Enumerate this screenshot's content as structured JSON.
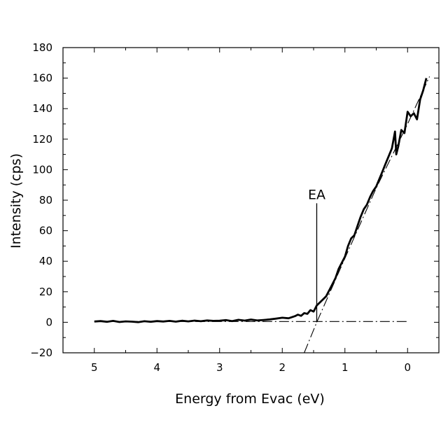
{
  "chart_data": {
    "type": "line",
    "title": "",
    "xlabel": "Energy from Evac (eV)",
    "ylabel": "Intensity (cps)",
    "x_reversed": true,
    "xlim": [
      5.5,
      -0.5
    ],
    "ylim": [
      -20,
      180
    ],
    "xticks": [
      5,
      4,
      3,
      2,
      1,
      0
    ],
    "yticks": [
      -20,
      0,
      20,
      40,
      60,
      80,
      100,
      120,
      140,
      160,
      180
    ],
    "grid": false,
    "legend": "none",
    "annotations": [
      {
        "text": "EA",
        "x": 1.45,
        "y": 0
      }
    ],
    "series": [
      {
        "style": "solid-thick",
        "x": [
          5.0,
          4.9,
          4.8,
          4.7,
          4.6,
          4.5,
          4.4,
          4.3,
          4.2,
          4.1,
          4.0,
          3.9,
          3.8,
          3.7,
          3.6,
          3.5,
          3.4,
          3.3,
          3.2,
          3.1,
          3.0,
          2.9,
          2.8,
          2.7,
          2.6,
          2.5,
          2.4,
          2.3,
          2.2,
          2.1,
          2.0,
          1.9,
          1.8,
          1.75,
          1.7,
          1.65,
          1.6,
          1.55,
          1.5,
          1.45,
          1.4,
          1.35,
          1.3,
          1.25,
          1.2,
          1.15,
          1.1,
          1.05,
          1.0,
          0.95,
          0.9,
          0.85,
          0.8,
          0.75,
          0.7,
          0.65,
          0.6,
          0.55,
          0.5,
          0.45,
          0.4,
          0.35,
          0.3,
          0.25,
          0.2,
          0.18,
          0.15,
          0.1,
          0.05,
          0.0,
          -0.05,
          -0.1,
          -0.15,
          -0.2,
          -0.25,
          -0.3
        ],
        "y": [
          0.5,
          0.8,
          0.3,
          0.9,
          0.2,
          0.6,
          0.4,
          0.1,
          0.7,
          0.3,
          0.8,
          0.5,
          0.9,
          0.4,
          1.0,
          0.6,
          1.1,
          0.7,
          1.2,
          0.9,
          1.0,
          1.4,
          0.8,
          1.6,
          1.1,
          1.8,
          1.2,
          1.5,
          1.9,
          2.4,
          3.0,
          2.6,
          4.0,
          5.0,
          4.2,
          6.0,
          5.5,
          8.0,
          7.0,
          11.0,
          13.0,
          15.0,
          17.0,
          21.0,
          25.0,
          29.0,
          35.0,
          39.0,
          43.0,
          50.0,
          55.0,
          57.0,
          63.0,
          69.0,
          74.0,
          77.0,
          82.0,
          86.0,
          89.0,
          94.0,
          99.0,
          104.0,
          109.0,
          114.0,
          125.0,
          110.0,
          115.0,
          126.0,
          124.0,
          138.0,
          135.0,
          137.0,
          133.0,
          146.0,
          152.0,
          160.0
        ]
      },
      {
        "style": "dash-dot",
        "x": [
          5.0,
          0.0
        ],
        "y": [
          0.5,
          0.5
        ]
      },
      {
        "style": "dash-dot",
        "x": [
          1.65,
          1.45,
          1.0,
          0.5,
          0.0,
          -0.35
        ],
        "y": [
          -20.0,
          0.0,
          42.0,
          88.0,
          130.0,
          161.0
        ]
      }
    ]
  }
}
